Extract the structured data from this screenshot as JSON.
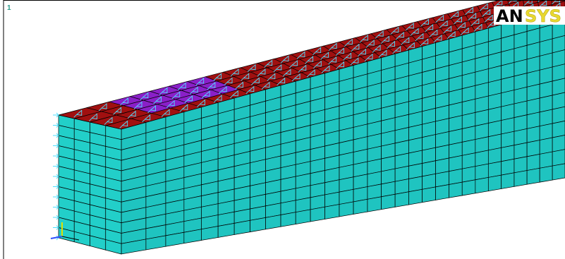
{
  "viewport": {
    "window_number": "1",
    "logo": {
      "dark": "AN",
      "light": "SYS"
    }
  }
}
